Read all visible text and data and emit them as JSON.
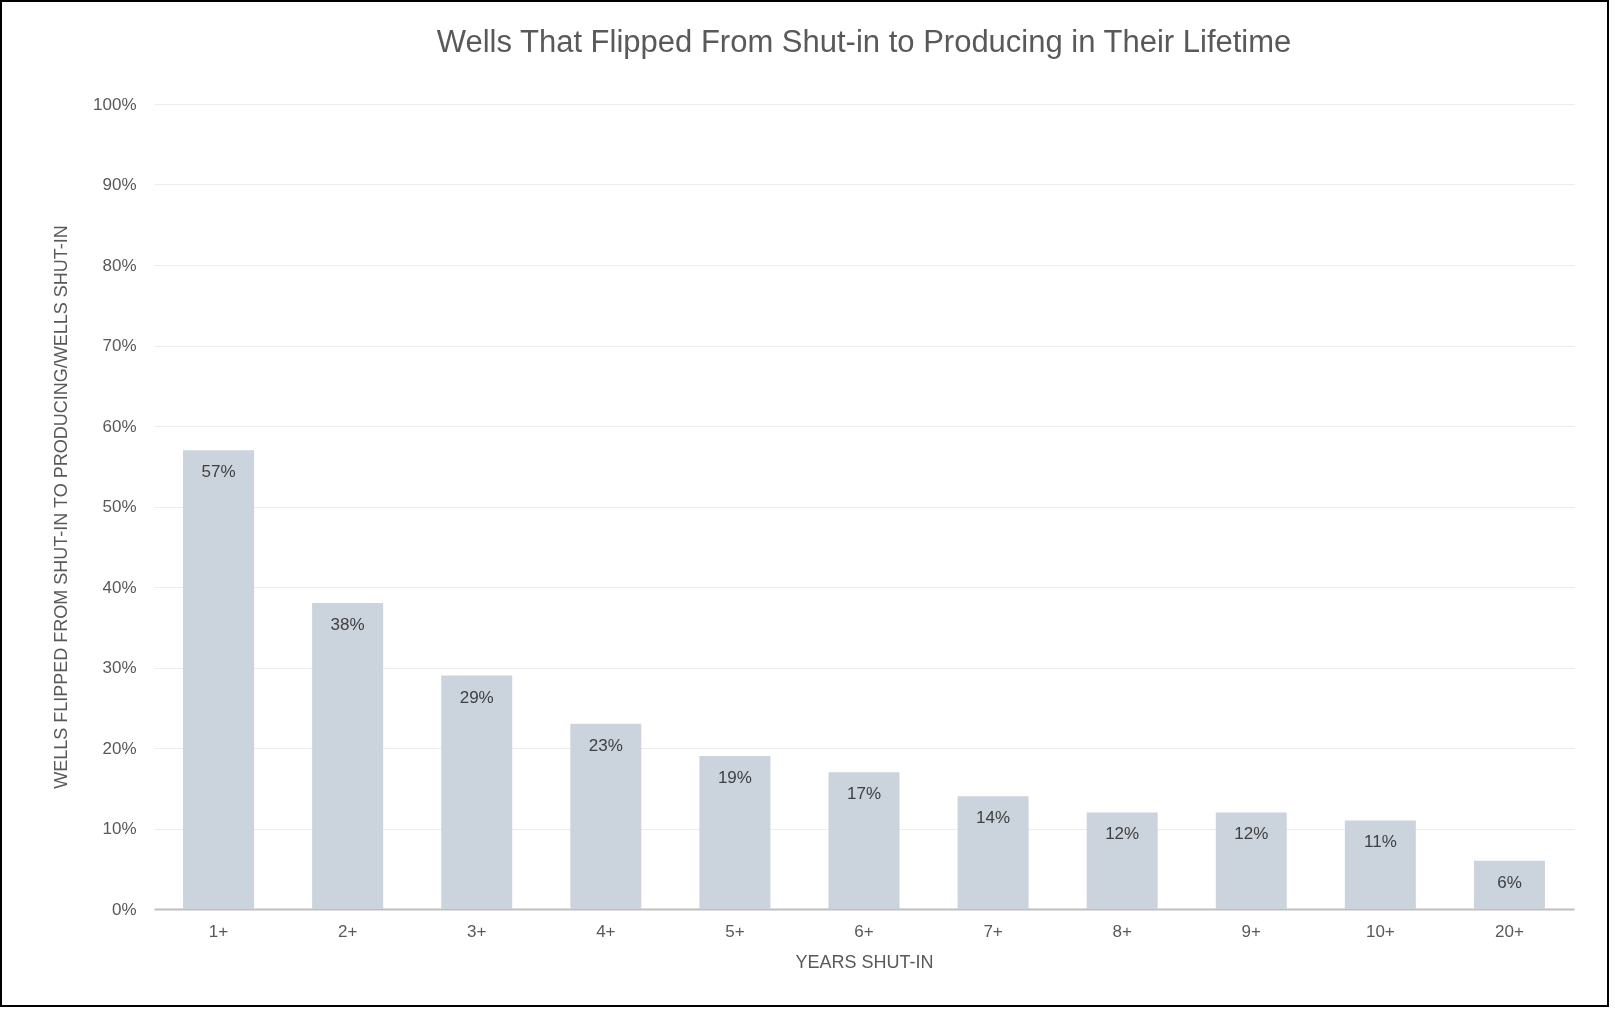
{
  "chart_data": {
    "type": "bar",
    "title": "Wells That Flipped From Shut-in to Producing in Their Lifetime",
    "xlabel": "YEARS SHUT-IN",
    "ylabel": "WELLS FLIPPED FROM SHUT-IN TO PRODUCING/WELLS SHUT-IN",
    "categories": [
      "1+",
      "2+",
      "3+",
      "4+",
      "5+",
      "6+",
      "7+",
      "8+",
      "9+",
      "10+",
      "20+"
    ],
    "values": [
      57,
      38,
      29,
      23,
      19,
      17,
      14,
      12,
      12,
      11,
      6
    ],
    "value_labels": [
      "57%",
      "38%",
      "29%",
      "23%",
      "19%",
      "17%",
      "14%",
      "12%",
      "12%",
      "11%",
      "6%"
    ],
    "color": "#cbd3dc",
    "ylim": [
      0,
      100
    ],
    "yticks": [
      {
        "value": 0,
        "label": "0%"
      },
      {
        "value": 10,
        "label": "10%"
      },
      {
        "value": 20,
        "label": "20%"
      },
      {
        "value": 30,
        "label": "30%"
      },
      {
        "value": 40,
        "label": "40%"
      },
      {
        "value": 50,
        "label": "50%"
      },
      {
        "value": 60,
        "label": "60%"
      },
      {
        "value": 70,
        "label": "70%"
      },
      {
        "value": 80,
        "label": "80%"
      },
      {
        "value": 90,
        "label": "90%"
      },
      {
        "value": 100,
        "label": "100%"
      }
    ],
    "grid": "y"
  }
}
